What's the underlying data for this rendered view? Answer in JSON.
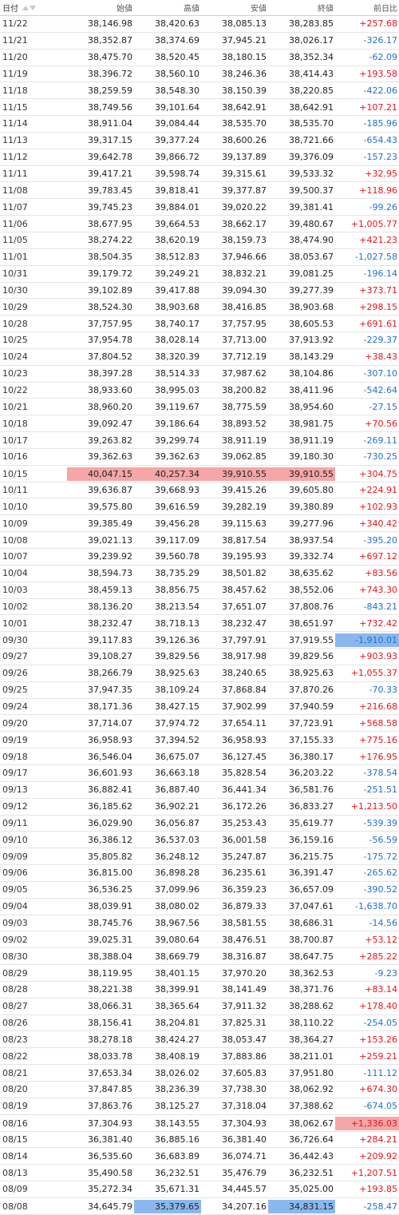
{
  "header": {
    "date": "日付",
    "open": "始値",
    "high": "高値",
    "low": "安値",
    "close": "終値",
    "change": "前日比"
  },
  "rows": [
    [
      "11/22",
      "38,146.98",
      "38,420.63",
      "38,085.13",
      "38,283.85",
      "+257.68"
    ],
    [
      "11/21",
      "38,352.87",
      "38,374.69",
      "37,945.21",
      "38,026.17",
      "-326.17"
    ],
    [
      "11/20",
      "38,475.70",
      "38,520.45",
      "38,180.15",
      "38,352.34",
      "-62.09"
    ],
    [
      "11/19",
      "38,396.72",
      "38,560.10",
      "38,246.36",
      "38,414.43",
      "+193.58"
    ],
    [
      "11/18",
      "38,259.59",
      "38,548.30",
      "38,150.39",
      "38,220.85",
      "-422.06"
    ],
    [
      "11/15",
      "38,749.56",
      "39,101.64",
      "38,642.91",
      "38,642.91",
      "+107.21"
    ],
    [
      "11/14",
      "38,911.04",
      "39,084.44",
      "38,535.70",
      "38,535.70",
      "-185.96"
    ],
    [
      "11/13",
      "39,317.15",
      "39,377.24",
      "38,600.26",
      "38,721.66",
      "-654.43"
    ],
    [
      "11/12",
      "39,642.78",
      "39,866.72",
      "39,137.89",
      "39,376.09",
      "-157.23"
    ],
    [
      "11/11",
      "39,417.21",
      "39,598.74",
      "39,315.61",
      "39,533.32",
      "+32.95"
    ],
    [
      "11/08",
      "39,783.45",
      "39,818.41",
      "39,377.87",
      "39,500.37",
      "+118.96"
    ],
    [
      "11/07",
      "39,745.23",
      "39,884.01",
      "39,020.22",
      "39,381.41",
      "-99.26"
    ],
    [
      "11/06",
      "38,677.95",
      "39,664.53",
      "38,662.17",
      "39,480.67",
      "+1,005.77"
    ],
    [
      "11/05",
      "38,274.22",
      "38,620.19",
      "38,159.73",
      "38,474.90",
      "+421.23"
    ],
    [
      "11/01",
      "38,504.35",
      "38,512.83",
      "37,946.66",
      "38,053.67",
      "-1,027.58"
    ],
    [
      "10/31",
      "39,179.72",
      "39,249.21",
      "38,832.21",
      "39,081.25",
      "-196.14"
    ],
    [
      "10/30",
      "39,102.89",
      "39,417.88",
      "39,094.30",
      "39,277.39",
      "+373.71"
    ],
    [
      "10/29",
      "38,524.30",
      "38,903.68",
      "38,416.85",
      "38,903.68",
      "+298.15"
    ],
    [
      "10/28",
      "37,757.95",
      "38,740.17",
      "37,757.95",
      "38,605.53",
      "+691.61"
    ],
    [
      "10/25",
      "37,954.78",
      "38,028.14",
      "37,713.00",
      "37,913.92",
      "-229.37"
    ],
    [
      "10/24",
      "37,804.52",
      "38,320.39",
      "37,712.19",
      "38,143.29",
      "+38.43"
    ],
    [
      "10/23",
      "38,397.28",
      "38,514.33",
      "37,987.62",
      "38,104.86",
      "-307.10"
    ],
    [
      "10/22",
      "38,933.60",
      "38,995.03",
      "38,200.82",
      "38,411.96",
      "-542.64"
    ],
    [
      "10/21",
      "38,960.20",
      "39,119.67",
      "38,775.59",
      "38,954.60",
      "-27.15"
    ],
    [
      "10/18",
      "39,092.47",
      "39,186.64",
      "38,893.52",
      "38,981.75",
      "+70.56"
    ],
    [
      "10/17",
      "39,263.82",
      "39,299.74",
      "38,911.19",
      "38,911.19",
      "-269.11"
    ],
    [
      "10/16",
      "39,362.63",
      "39,362.63",
      "39,062.85",
      "39,180.30",
      "-730.25"
    ],
    [
      "10/15",
      "40,047.15",
      "40,257.34",
      "39,910.55",
      "39,910.55",
      "+304.75"
    ],
    [
      "10/11",
      "39,636.87",
      "39,668.93",
      "39,415.26",
      "39,605.80",
      "+224.91"
    ],
    [
      "10/10",
      "39,575.80",
      "39,616.59",
      "39,282.19",
      "39,380.89",
      "+102.93"
    ],
    [
      "10/09",
      "39,385.49",
      "39,456.28",
      "39,115.63",
      "39,277.96",
      "+340.42"
    ],
    [
      "10/08",
      "39,021.13",
      "39,117.09",
      "38,817.54",
      "38,937.54",
      "-395.20"
    ],
    [
      "10/07",
      "39,239.92",
      "39,560.78",
      "39,195.93",
      "39,332.74",
      "+697.12"
    ],
    [
      "10/04",
      "38,594.73",
      "38,735.29",
      "38,501.82",
      "38,635.62",
      "+83.56"
    ],
    [
      "10/03",
      "38,459.13",
      "38,856.75",
      "38,457.62",
      "38,552.06",
      "+743.30"
    ],
    [
      "10/02",
      "38,136.20",
      "38,213.54",
      "37,651.07",
      "37,808.76",
      "-843.21"
    ],
    [
      "10/01",
      "38,232.47",
      "38,718.13",
      "38,232.47",
      "38,651.97",
      "+732.42"
    ],
    [
      "09/30",
      "39,117.83",
      "39,126.36",
      "37,797.91",
      "37,919.55",
      "-1,910.01"
    ],
    [
      "09/27",
      "39,108.27",
      "39,829.56",
      "38,917.98",
      "39,829.56",
      "+903.93"
    ],
    [
      "09/26",
      "38,266.79",
      "38,925.63",
      "38,240.65",
      "38,925.63",
      "+1,055.37"
    ],
    [
      "09/25",
      "37,947.35",
      "38,109.24",
      "37,868.84",
      "37,870.26",
      "-70.33"
    ],
    [
      "09/24",
      "38,171.36",
      "38,427.15",
      "37,902.99",
      "37,940.59",
      "+216.68"
    ],
    [
      "09/20",
      "37,714.07",
      "37,974.72",
      "37,654.11",
      "37,723.91",
      "+568.58"
    ],
    [
      "09/19",
      "36,958.93",
      "37,394.52",
      "36,958.93",
      "37,155.33",
      "+775.16"
    ],
    [
      "09/18",
      "36,546.04",
      "36,675.07",
      "36,127.45",
      "36,380.17",
      "+176.95"
    ],
    [
      "09/17",
      "36,601.93",
      "36,663.18",
      "35,828.54",
      "36,203.22",
      "-378.54"
    ],
    [
      "09/13",
      "36,882.41",
      "36,887.40",
      "36,441.34",
      "36,581.76",
      "-251.51"
    ],
    [
      "09/12",
      "36,185.62",
      "36,902.21",
      "36,172.26",
      "36,833.27",
      "+1,213.50"
    ],
    [
      "09/11",
      "36,029.90",
      "36,056.87",
      "35,253.43",
      "35,619.77",
      "-539.39"
    ],
    [
      "09/10",
      "36,386.12",
      "36,537.03",
      "36,001.58",
      "36,159.16",
      "-56.59"
    ],
    [
      "09/09",
      "35,805.82",
      "36,248.12",
      "35,247.87",
      "36,215.75",
      "-175.72"
    ],
    [
      "09/06",
      "36,815.00",
      "36,898.28",
      "36,235.61",
      "36,391.47",
      "-265.62"
    ],
    [
      "09/05",
      "36,536.25",
      "37,099.96",
      "36,359.23",
      "36,657.09",
      "-390.52"
    ],
    [
      "09/04",
      "38,039.91",
      "38,080.02",
      "36,879.33",
      "37,047.61",
      "-1,638.70"
    ],
    [
      "09/03",
      "38,745.76",
      "38,967.56",
      "38,581.55",
      "38,686.31",
      "-14.56"
    ],
    [
      "09/02",
      "39,025.31",
      "39,080.64",
      "38,476.51",
      "38,700.87",
      "+53.12"
    ],
    [
      "08/30",
      "38,388.04",
      "38,669.79",
      "38,316.87",
      "38,647.75",
      "+285.22"
    ],
    [
      "08/29",
      "38,119.95",
      "38,401.15",
      "37,970.20",
      "38,362.53",
      "-9.23"
    ],
    [
      "08/28",
      "38,221.38",
      "38,399.91",
      "38,141.49",
      "38,371.76",
      "+83.14"
    ],
    [
      "08/27",
      "38,066.31",
      "38,365.64",
      "37,911.32",
      "38,288.62",
      "+178.40"
    ],
    [
      "08/26",
      "38,156.41",
      "38,204.81",
      "37,825.31",
      "38,110.22",
      "-254.05"
    ],
    [
      "08/23",
      "38,278.18",
      "38,424.27",
      "38,053.47",
      "38,364.27",
      "+153.26"
    ],
    [
      "08/22",
      "38,033.78",
      "38,408.19",
      "37,883.86",
      "38,211.01",
      "+259.21"
    ],
    [
      "08/21",
      "37,653.34",
      "38,026.02",
      "37,605.83",
      "37,951.80",
      "-111.12"
    ],
    [
      "08/20",
      "37,847.85",
      "38,236.39",
      "37,738.30",
      "38,062.92",
      "+674.30"
    ],
    [
      "08/19",
      "37,863.76",
      "38,125.27",
      "37,318.04",
      "37,388.62",
      "-674.05"
    ],
    [
      "08/16",
      "37,304.93",
      "38,143.55",
      "37,304.93",
      "38,062.67",
      "+1,336.03"
    ],
    [
      "08/15",
      "36,381.40",
      "36,885.16",
      "36,381.40",
      "36,726.64",
      "+284.21"
    ],
    [
      "08/14",
      "36,535.60",
      "36,683.89",
      "36,074.71",
      "36,442.43",
      "+209.92"
    ],
    [
      "08/13",
      "35,490.58",
      "36,232.51",
      "35,476.79",
      "36,232.51",
      "+1,207.51"
    ],
    [
      "08/09",
      "35,272.34",
      "35,671.31",
      "34,445.57",
      "35,025.00",
      "+193.85"
    ],
    [
      "08/08",
      "34,645.79",
      "35,379.65",
      "34,207.16",
      "34,831.15",
      "-258.47"
    ]
  ],
  "highlights": {
    "10/15": {
      "open": "red",
      "high": "red",
      "low": "red",
      "close": "red"
    },
    "09/30": {
      "change": "blue"
    },
    "08/16": {
      "change": "red"
    },
    "08/08": {
      "high": "blue",
      "close": "blue"
    }
  },
  "colors": {
    "positive": "#e8141b",
    "negative": "#1f6fd1",
    "highlight_red": "#f5a6a6",
    "highlight_blue": "#8ab8ee"
  },
  "icons": {
    "sort_asc": "triangle-up",
    "sort_desc": "triangle-down"
  }
}
